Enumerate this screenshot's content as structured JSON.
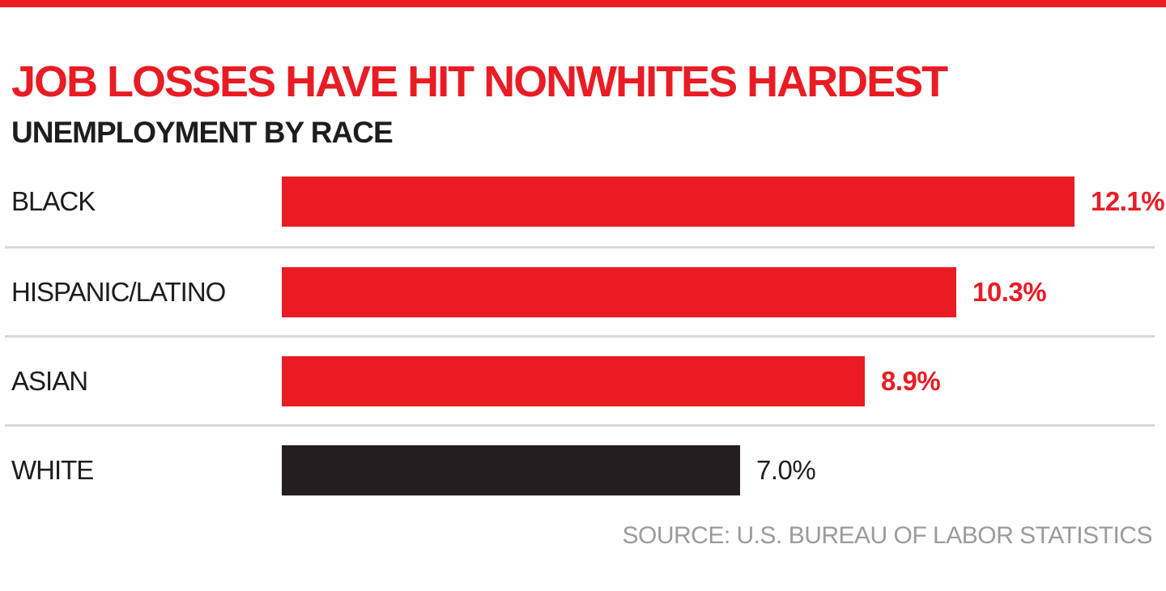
{
  "page": {
    "title": "JOB LOSSES HAVE HIT NONWHITES HARDEST",
    "subtitle": "UNEMPLOYMENT BY RACE",
    "source": "SOURCE: U.S. BUREAU OF LABOR STATISTICS"
  },
  "colors": {
    "accent_red": "#e91c24",
    "bar_black": "#231f20",
    "divider_gray": "#d8d8d8",
    "source_gray": "#9b9b9b",
    "text_black": "#1d1d1d"
  },
  "chart_data": {
    "type": "bar",
    "orientation": "horizontal",
    "title": "JOB LOSSES HAVE HIT NONWHITES HARDEST",
    "subtitle": "UNEMPLOYMENT BY RACE",
    "categories": [
      "BLACK",
      "HISPANIC/LATINO",
      "ASIAN",
      "WHITE"
    ],
    "values": [
      12.1,
      10.3,
      8.9,
      7.0
    ],
    "value_labels": [
      "12.1%",
      "10.3%",
      "8.9%",
      "7.0%"
    ],
    "bar_colors": [
      "#e91c24",
      "#e91c24",
      "#e91c24",
      "#231f20"
    ],
    "value_label_colors": [
      "#e91c24",
      "#e91c24",
      "#e91c24",
      "#231f20"
    ],
    "value_label_weights": [
      "bold",
      "bold",
      "bold",
      "normal"
    ],
    "xlim": [
      0,
      12.1
    ],
    "grid": false,
    "legend": false,
    "row_dividers": true,
    "source": "SOURCE: U.S. BUREAU OF LABOR STATISTICS"
  }
}
